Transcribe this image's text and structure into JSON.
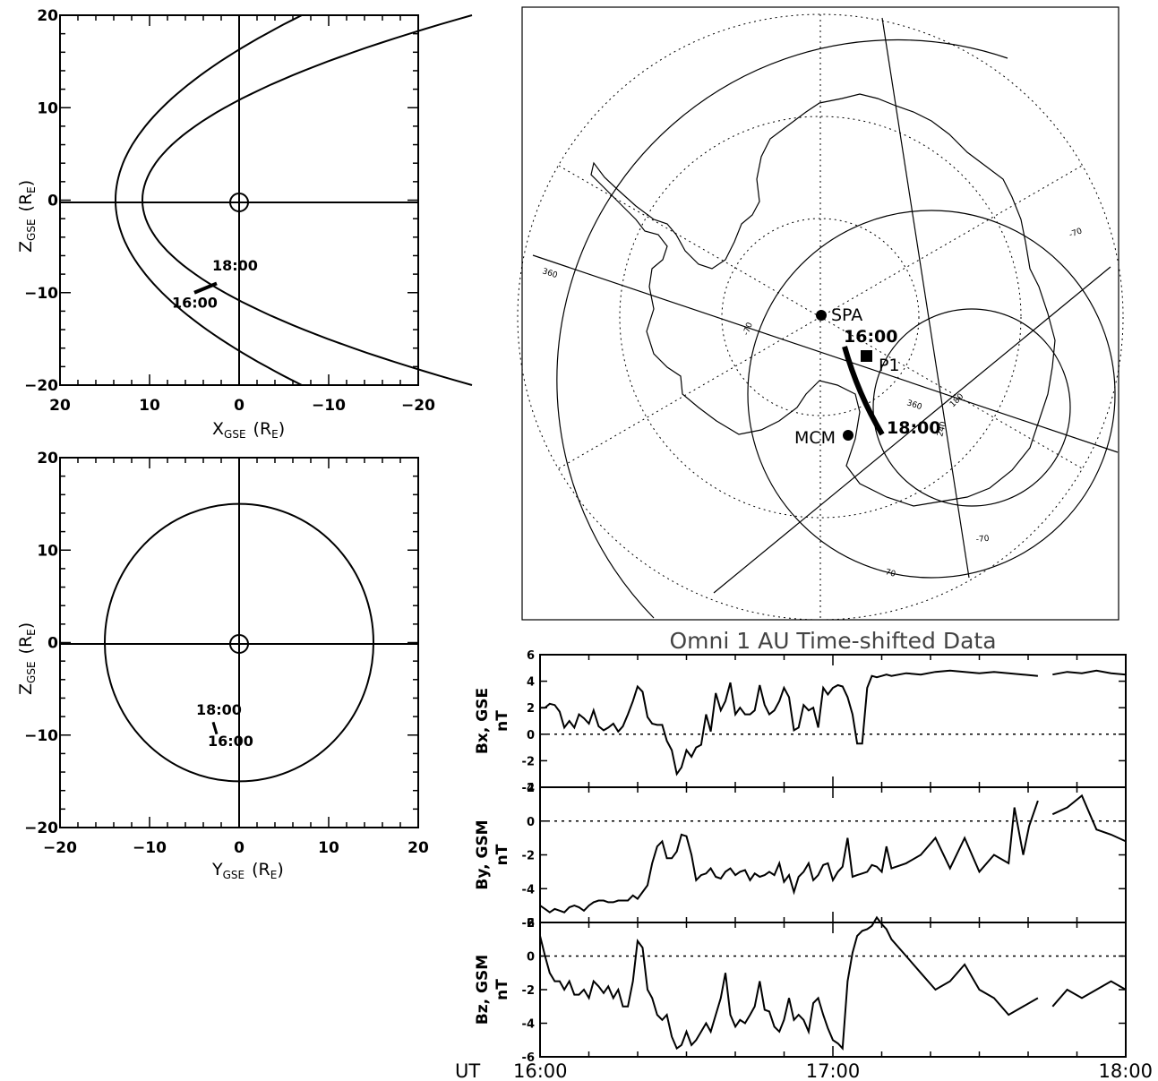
{
  "chart_data": [
    {
      "type": "line",
      "panel": "xz-orbit",
      "xlabel": "X",
      "xlabel_sub": "GSE",
      "xlabel_unit": "(R",
      "xlabel_unit_sub": "E",
      "ylabel": "Z",
      "ylabel_sub": "GSE",
      "ylabel_unit": "(R",
      "ylabel_unit_sub": "E",
      "xlim": [
        20,
        -20
      ],
      "ylim": [
        -20,
        20
      ],
      "xticks": [
        20,
        10,
        0,
        -10,
        -20
      ],
      "xtick_labels": [
        "20",
        "10",
        "0",
        "−10",
        "−20"
      ],
      "yticks": [
        20,
        10,
        0,
        -10,
        -20
      ],
      "ytick_labels": [
        "20",
        "10",
        "0",
        "−10",
        "−20"
      ],
      "bow_shock": {
        "nose": 13.8,
        "flare": 0.052
      },
      "magnetopause": {
        "nose": 10.8,
        "flare": 0.092
      },
      "orbit": {
        "x": [
          5.0,
          2.5
        ],
        "y": [
          -10.0,
          -9.0
        ]
      },
      "annotations": [
        {
          "text": "18:00",
          "x": 3.0,
          "y": -7.6
        },
        {
          "text": "16:00",
          "x": 7.5,
          "y": -11.6
        }
      ]
    },
    {
      "type": "line",
      "panel": "yz-orbit",
      "xlabel": "Y",
      "xlabel_sub": "GSE",
      "xlabel_unit": "(R",
      "xlabel_unit_sub": "E",
      "ylabel": "Z",
      "ylabel_sub": "GSE",
      "ylabel_unit": "(R",
      "ylabel_unit_sub": "E",
      "xlim": [
        -20,
        20
      ],
      "ylim": [
        -20,
        20
      ],
      "xticks": [
        -20,
        -10,
        0,
        10,
        20
      ],
      "xtick_labels": [
        "−20",
        "−10",
        "0",
        "10",
        "20"
      ],
      "yticks": [
        20,
        10,
        0,
        -10,
        -20
      ],
      "ytick_labels": [
        "20",
        "10",
        "0",
        "−10",
        "−20"
      ],
      "boundary_radius": 15,
      "orbit": {
        "x": [
          -2.9,
          -2.5
        ],
        "y": [
          -8.6,
          -9.9
        ]
      },
      "annotations": [
        {
          "text": "18:00",
          "x": -4.8,
          "y": -7.8
        },
        {
          "text": "16:00",
          "x": -3.5,
          "y": -11.2
        }
      ]
    },
    {
      "type": "line",
      "panel": "omni-time-series",
      "title": "Omni   1  AU  Time-shifted Data",
      "x_label_prefix": "UT",
      "x_tick_labels": [
        "16:00",
        "17:00",
        "18:00"
      ],
      "x_ticks_hours": [
        16,
        17,
        18
      ],
      "xlim": [
        16.0,
        18.0
      ],
      "series": [
        {
          "name": "Bx, GSE",
          "unit": "nT",
          "ylim": [
            -4,
            6
          ],
          "yticks": [
            -4,
            -2,
            0,
            2,
            4,
            6
          ],
          "ytick_labels": [
            "-4",
            "-2",
            "0",
            "2",
            "4",
            "6"
          ],
          "t": [
            16.0,
            16.017,
            16.033,
            16.05,
            16.067,
            16.083,
            16.1,
            16.117,
            16.133,
            16.15,
            16.167,
            16.183,
            16.2,
            16.217,
            16.233,
            16.25,
            16.267,
            16.283,
            16.3,
            16.317,
            16.333,
            16.35,
            16.367,
            16.383,
            16.4,
            16.417,
            16.433,
            16.45,
            16.467,
            16.483,
            16.5,
            16.517,
            16.533,
            16.55,
            16.567,
            16.583,
            16.6,
            16.617,
            16.633,
            16.65,
            16.667,
            16.683,
            16.7,
            16.717,
            16.733,
            16.75,
            16.767,
            16.783,
            16.8,
            16.817,
            16.833,
            16.85,
            16.867,
            16.883,
            16.9,
            16.917,
            16.933,
            16.95,
            16.967,
            16.983,
            17.0,
            17.017,
            17.033,
            17.05,
            17.067,
            17.083,
            17.1,
            17.117,
            17.133,
            17.15,
            17.167,
            17.183,
            17.2,
            17.25,
            17.3,
            17.35,
            17.4,
            17.45,
            17.5,
            17.55,
            17.6,
            17.65,
            17.7,
            17.75,
            17.8,
            17.85,
            17.9,
            17.95,
            18.0
          ],
          "values": [
            2.0,
            2.0,
            2.3,
            2.2,
            1.7,
            0.5,
            1.0,
            0.5,
            1.5,
            1.2,
            0.8,
            1.8,
            0.6,
            0.3,
            0.5,
            0.8,
            0.2,
            0.6,
            1.5,
            2.5,
            3.6,
            3.2,
            1.3,
            0.8,
            0.7,
            0.7,
            -0.5,
            -1.2,
            -3.0,
            -2.5,
            -1.2,
            -1.7,
            -1.0,
            -0.8,
            1.5,
            0.2,
            3.1,
            1.8,
            2.5,
            3.9,
            1.5,
            2.0,
            1.5,
            1.5,
            1.8,
            3.7,
            2.2,
            1.5,
            1.8,
            2.5,
            3.5,
            2.8,
            0.3,
            0.5,
            2.2,
            1.8,
            2.0,
            0.5,
            3.5,
            3.0,
            3.5,
            3.7,
            3.6,
            2.8,
            1.5,
            -0.7,
            -0.7,
            3.5,
            4.4,
            4.3,
            4.4,
            4.5,
            4.4,
            4.6,
            4.5,
            4.7,
            4.8,
            4.7,
            4.6,
            4.7,
            4.6,
            4.5,
            4.4,
            4.5,
            4.7,
            4.6,
            4.8,
            4.6,
            4.5
          ],
          "gaps_after_t": [
            17.7
          ]
        },
        {
          "name": "By, GSM",
          "unit": "nT",
          "ylim": [
            -6,
            2
          ],
          "yticks": [
            -6,
            -4,
            -2,
            0,
            2
          ],
          "ytick_labels": [
            "-6",
            "-4",
            "-2",
            "0",
            "2"
          ],
          "t": [
            16.0,
            16.017,
            16.033,
            16.05,
            16.067,
            16.083,
            16.1,
            16.117,
            16.133,
            16.15,
            16.167,
            16.183,
            16.2,
            16.217,
            16.233,
            16.25,
            16.267,
            16.283,
            16.3,
            16.317,
            16.333,
            16.35,
            16.367,
            16.383,
            16.4,
            16.417,
            16.433,
            16.45,
            16.467,
            16.483,
            16.5,
            16.517,
            16.533,
            16.55,
            16.567,
            16.583,
            16.6,
            16.617,
            16.633,
            16.65,
            16.667,
            16.683,
            16.7,
            16.717,
            16.733,
            16.75,
            16.767,
            16.783,
            16.8,
            16.817,
            16.833,
            16.85,
            16.867,
            16.883,
            16.9,
            16.917,
            16.933,
            16.95,
            16.967,
            16.983,
            17.0,
            17.017,
            17.033,
            17.05,
            17.067,
            17.083,
            17.1,
            17.117,
            17.133,
            17.15,
            17.167,
            17.183,
            17.2,
            17.25,
            17.3,
            17.35,
            17.4,
            17.45,
            17.5,
            17.55,
            17.6,
            17.62,
            17.65,
            17.67,
            17.7,
            17.75,
            17.8,
            17.85,
            17.9,
            17.95,
            18.0
          ],
          "values": [
            -5.0,
            -5.2,
            -5.4,
            -5.2,
            -5.3,
            -5.4,
            -5.1,
            -5.0,
            -5.1,
            -5.3,
            -5.0,
            -4.8,
            -4.7,
            -4.7,
            -4.8,
            -4.8,
            -4.7,
            -4.7,
            -4.7,
            -4.4,
            -4.6,
            -4.2,
            -3.8,
            -2.5,
            -1.5,
            -1.2,
            -2.2,
            -2.2,
            -1.8,
            -0.8,
            -0.9,
            -2.0,
            -3.5,
            -3.2,
            -3.1,
            -2.8,
            -3.3,
            -3.4,
            -3.0,
            -2.8,
            -3.2,
            -3.0,
            -2.9,
            -3.5,
            -3.1,
            -3.3,
            -3.2,
            -3.0,
            -3.2,
            -2.5,
            -3.6,
            -3.2,
            -4.2,
            -3.3,
            -3.0,
            -2.5,
            -3.5,
            -3.2,
            -2.6,
            -2.5,
            -3.5,
            -3.0,
            -2.7,
            -1.0,
            -3.3,
            -3.2,
            -3.1,
            -3.0,
            -2.6,
            -2.7,
            -3.0,
            -1.5,
            -2.8,
            -2.5,
            -2.0,
            -1.0,
            -2.8,
            -1.0,
            -3.0,
            -2.0,
            -2.5,
            0.8,
            -2.0,
            -0.3,
            1.2,
            0.4,
            0.8,
            1.5,
            -0.5,
            -0.8,
            -1.2
          ],
          "gaps_after_t": [
            17.7
          ]
        },
        {
          "name": "Bz, GSM",
          "unit": "nT",
          "ylim": [
            -6,
            2
          ],
          "yticks": [
            -6,
            -4,
            -2,
            0,
            2
          ],
          "ytick_labels": [
            "-6",
            "-4",
            "-2",
            "0",
            "2"
          ],
          "t": [
            16.0,
            16.017,
            16.033,
            16.05,
            16.067,
            16.083,
            16.1,
            16.117,
            16.133,
            16.15,
            16.167,
            16.183,
            16.2,
            16.217,
            16.233,
            16.25,
            16.267,
            16.283,
            16.3,
            16.317,
            16.333,
            16.35,
            16.367,
            16.383,
            16.4,
            16.417,
            16.433,
            16.45,
            16.467,
            16.483,
            16.5,
            16.517,
            16.533,
            16.55,
            16.567,
            16.583,
            16.6,
            16.617,
            16.633,
            16.65,
            16.667,
            16.683,
            16.7,
            16.717,
            16.733,
            16.75,
            16.767,
            16.783,
            16.8,
            16.817,
            16.833,
            16.85,
            16.867,
            16.883,
            16.9,
            16.917,
            16.933,
            16.95,
            16.967,
            16.983,
            17.0,
            17.017,
            17.033,
            17.05,
            17.067,
            17.083,
            17.1,
            17.117,
            17.133,
            17.15,
            17.167,
            17.183,
            17.2,
            17.25,
            17.3,
            17.35,
            17.4,
            17.45,
            17.5,
            17.55,
            17.6,
            17.65,
            17.7,
            17.75,
            17.8,
            17.85,
            17.9,
            17.95,
            18.0
          ],
          "values": [
            1.2,
            0.0,
            -1.0,
            -1.5,
            -1.5,
            -2.0,
            -1.5,
            -2.3,
            -2.3,
            -2.0,
            -2.5,
            -1.5,
            -1.8,
            -2.2,
            -1.8,
            -2.5,
            -2.0,
            -3.0,
            -3.0,
            -1.5,
            0.9,
            0.5,
            -2.0,
            -2.5,
            -3.5,
            -3.8,
            -3.5,
            -4.8,
            -5.5,
            -5.3,
            -4.5,
            -5.3,
            -5.0,
            -4.5,
            -4.0,
            -4.5,
            -3.5,
            -2.5,
            -1.0,
            -3.5,
            -4.2,
            -3.8,
            -4.0,
            -3.5,
            -3.0,
            -1.5,
            -3.2,
            -3.3,
            -4.2,
            -4.5,
            -3.8,
            -2.5,
            -3.8,
            -3.5,
            -3.8,
            -4.5,
            -2.8,
            -2.5,
            -3.5,
            -4.3,
            -5.0,
            -5.2,
            -5.5,
            -1.5,
            0.2,
            1.2,
            1.5,
            1.6,
            1.8,
            2.3,
            1.9,
            1.6,
            1.0,
            0.0,
            -1.0,
            -2.0,
            -1.5,
            -0.5,
            -2.0,
            -2.5,
            -3.5,
            -3.0,
            -2.5,
            -3.0,
            -2.0,
            -2.5,
            -2.0,
            -1.5,
            -2.0
          ],
          "gaps_after_t": [
            17.7
          ]
        }
      ]
    },
    {
      "type": "map",
      "panel": "antarctic-map",
      "labels": {
        "spa": "SPA",
        "mcm": "MCM",
        "p1": "P1",
        "start": "16:00",
        "end": "18:00"
      },
      "grid_labels": [
        "360",
        "-70",
        "-70",
        "-70",
        "-70",
        "360",
        "180",
        "240"
      ]
    }
  ]
}
